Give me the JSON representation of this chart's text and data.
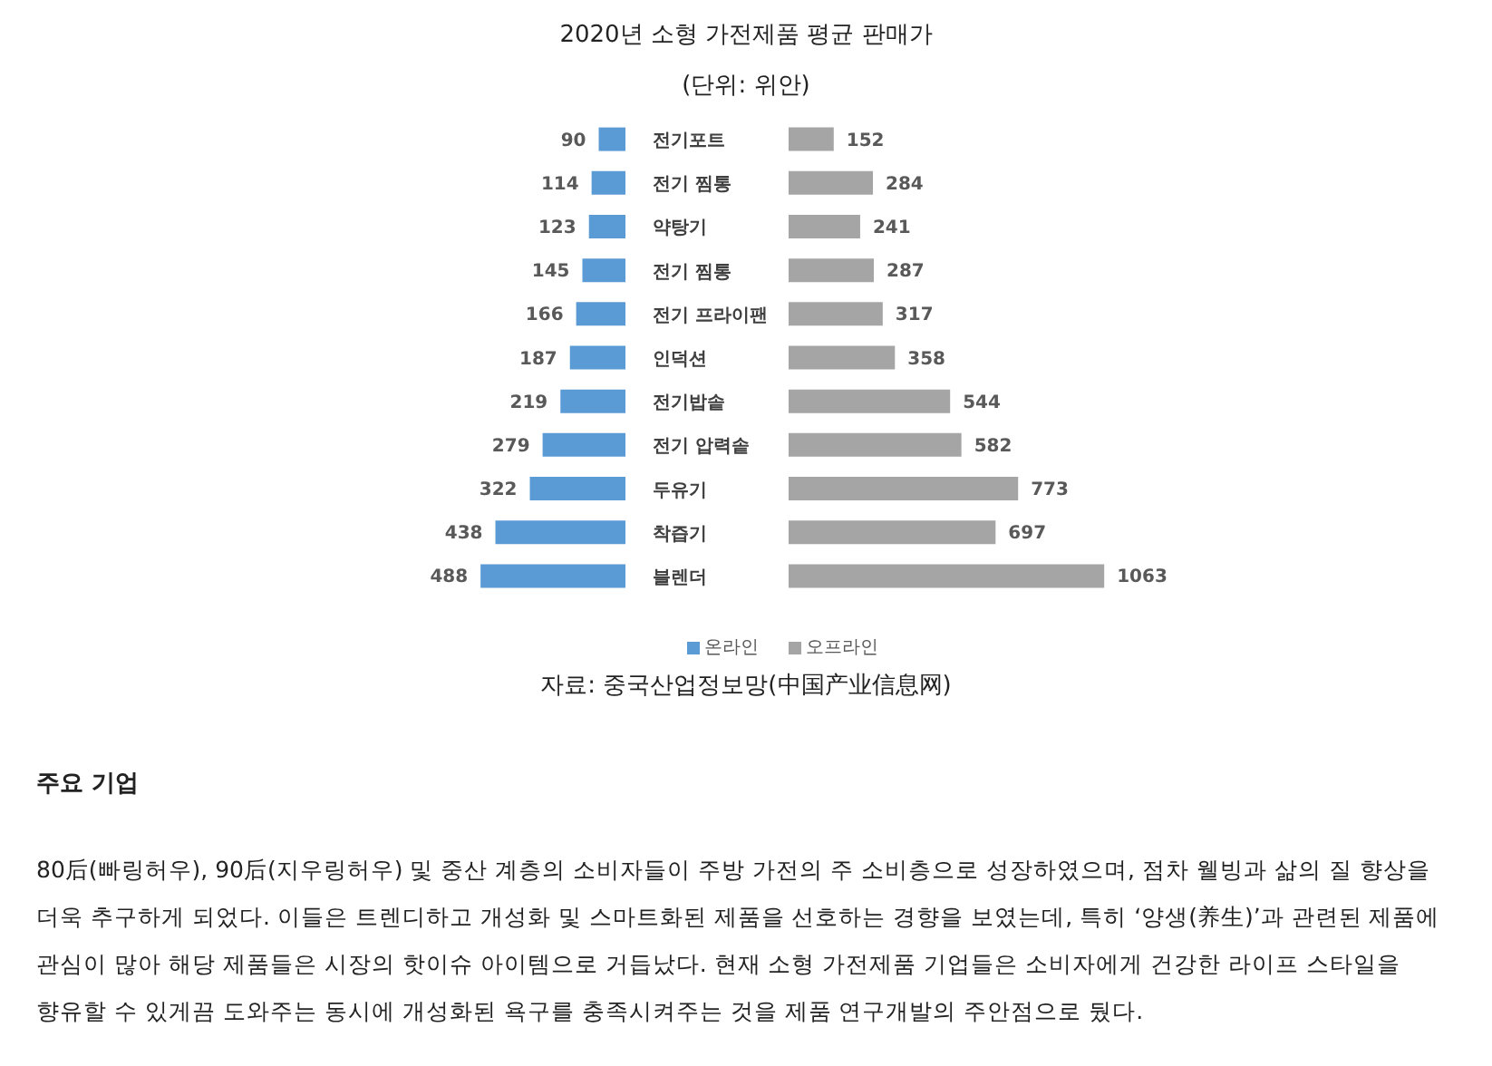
{
  "chart_data": [
    {
      "type": "bar",
      "orientation": "horizontal",
      "title": "2020년 소형 가전제품 평균 판매가",
      "subtitle": "(단위: 위안)",
      "categories": [
        "전기포트",
        "전기 찜통",
        "약탕기",
        "전기 찜통",
        "전기 프라이팬",
        "인덕션",
        "전기밥솥",
        "전기 압력솥",
        "두유기",
        "착즙기",
        "블렌더"
      ],
      "series": [
        {
          "name": "온라인",
          "color": "#5b9bd5",
          "values": [
            90,
            114,
            123,
            145,
            166,
            187,
            219,
            279,
            322,
            438,
            488
          ]
        }
      ],
      "data_labels": true,
      "legend": "bottom"
    },
    {
      "type": "bar",
      "orientation": "horizontal",
      "categories": [
        null,
        null,
        null,
        null,
        null,
        null,
        null,
        null,
        null,
        null,
        null
      ],
      "series": [
        {
          "name": "오프라인",
          "color": "#a5a5a5",
          "values": [
            152,
            284,
            241,
            287,
            317,
            358,
            544,
            582,
            773,
            697,
            1063
          ]
        }
      ],
      "data_labels": true,
      "legend": "bottom",
      "annotations": [
        "자료: 중국산업정보망(中国产业信息网)",
        "주요 기업",
        "80后(빠링허우), 90后(지우링허우) 및 중산 계층의 소비자들이 주방 가전의 주 소비층으로 성장하였으며, 점차 웰빙과 삶의 질 향상을 더욱 추구하게 되었다. 이들은 트렌디하고 개성화 및 스마트화된 제품을 선호하는 경향을 보였는데, 특히 ‘양생(养生)’과 관련된 제품에 관심이 많아 해당 제품들은 시장의 핫이슈 아이템으로 거듭났다. 현재 소형 가전제품 기업들은 소비자에게 건강한 라이프 스타일을 향유할 수 있게끔 도와주는 동시에 개성화된 욕구를 충족시켜주는 것을 제품 연구개발의 주안점으로 뒀다."
      ]
    }
  ]
}
